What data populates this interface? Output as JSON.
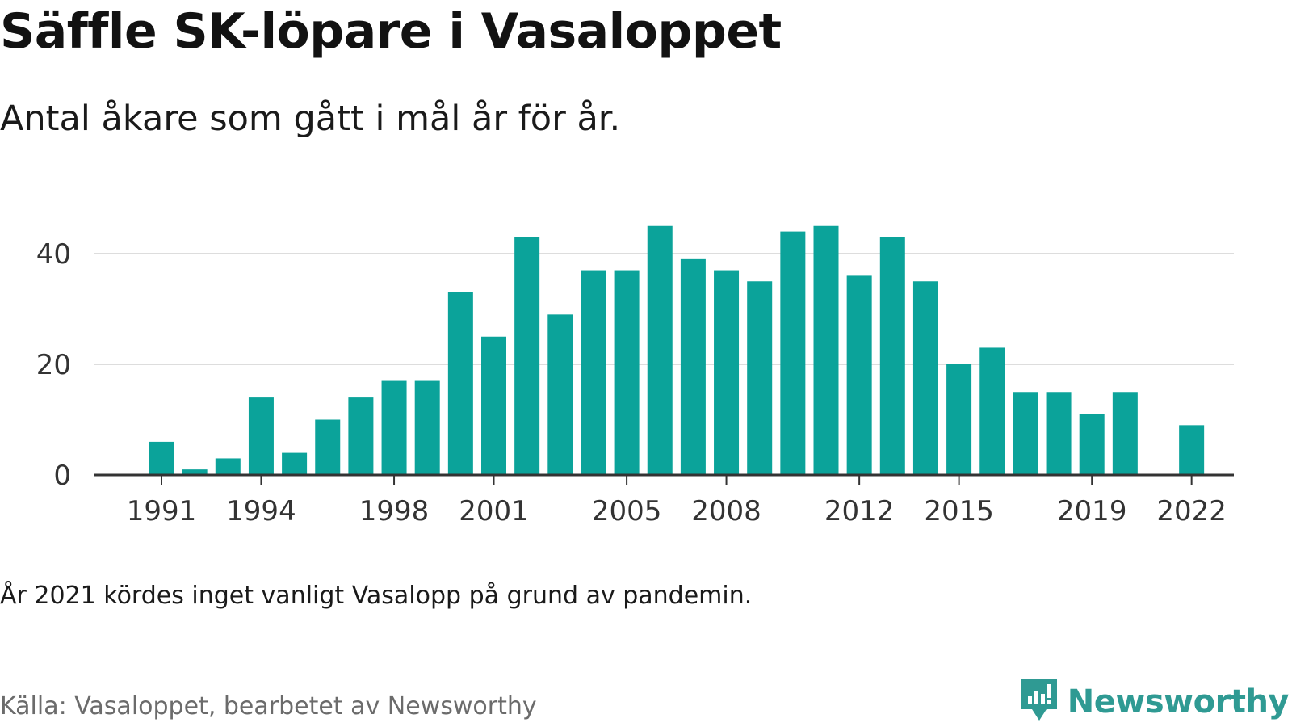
{
  "title": "Säffle SK-löpare i Vasaloppet",
  "subtitle": "Antal åkare som gått i mål år för år.",
  "note": "År 2021 kördes inget vanligt Vasalopp på grund av pandemin.",
  "source": "Källa: Vasaloppet, bearbetet av Newsworthy",
  "brand": {
    "name": "Newsworthy",
    "icon": "newsworthy-logo-icon",
    "color": "#2f9a93"
  },
  "colors": {
    "bar": "#0ba39a",
    "grid": "#dddddd",
    "axis": "#333333"
  },
  "chart_data": {
    "type": "bar",
    "categories": [
      1991,
      1992,
      1993,
      1994,
      1995,
      1996,
      1997,
      1998,
      1999,
      2000,
      2001,
      2002,
      2003,
      2004,
      2005,
      2006,
      2007,
      2008,
      2009,
      2010,
      2011,
      2012,
      2013,
      2014,
      2015,
      2016,
      2017,
      2018,
      2019,
      2020,
      2021,
      2022
    ],
    "values": [
      6,
      1,
      3,
      14,
      4,
      10,
      14,
      17,
      17,
      33,
      25,
      43,
      29,
      37,
      37,
      45,
      39,
      37,
      35,
      44,
      45,
      36,
      43,
      35,
      20,
      23,
      15,
      15,
      11,
      15,
      null,
      9
    ],
    "x_tick_labels": [
      1991,
      1994,
      1998,
      2001,
      2005,
      2008,
      2012,
      2015,
      2019,
      2022
    ],
    "y_ticks": [
      0,
      20,
      40
    ],
    "ylim": [
      0,
      45
    ],
    "grid": true,
    "legend": "none"
  }
}
